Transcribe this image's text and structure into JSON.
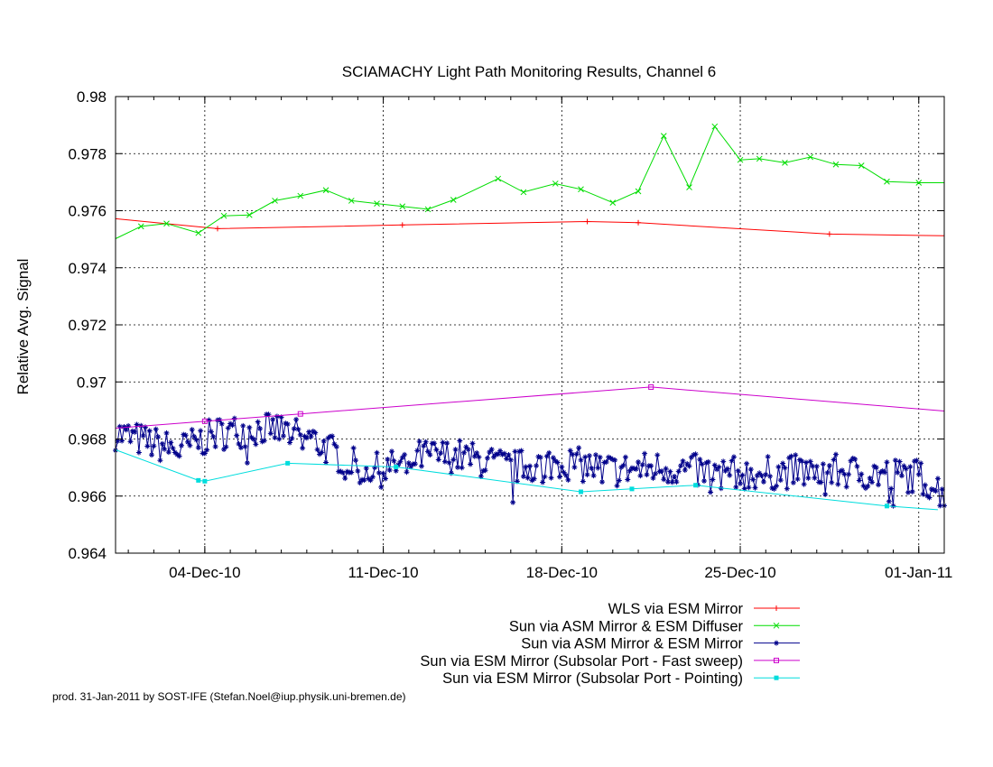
{
  "chart_data": {
    "type": "line",
    "title": "SCIAMACHY Light Path Monitoring Results, Channel 6",
    "xlabel": "",
    "ylabel": "Relative Avg. Signal",
    "x_is_date": true,
    "xlim": [
      "2010-11-30T12:00",
      "2011-01-02T00:00"
    ],
    "ylim": [
      0.964,
      0.98
    ],
    "grid": true,
    "legend_position": "bottom-right",
    "x_ticks": [
      {
        "x": "2010-12-04",
        "label": "04-Dec-10"
      },
      {
        "x": "2010-12-11",
        "label": "11-Dec-10"
      },
      {
        "x": "2010-12-18",
        "label": "18-Dec-10"
      },
      {
        "x": "2010-12-25",
        "label": "25-Dec-10"
      },
      {
        "x": "2011-01-01",
        "label": "01-Jan-11"
      }
    ],
    "y_ticks": [
      {
        "y": 0.964,
        "label": "0.964"
      },
      {
        "y": 0.966,
        "label": "0.966"
      },
      {
        "y": 0.968,
        "label": "0.968"
      },
      {
        "y": 0.97,
        "label": "0.97"
      },
      {
        "y": 0.972,
        "label": "0.972"
      },
      {
        "y": 0.974,
        "label": "0.974"
      },
      {
        "y": 0.976,
        "label": "0.976"
      },
      {
        "y": 0.978,
        "label": "0.978"
      },
      {
        "y": 0.98,
        "label": "0.98"
      }
    ],
    "series": [
      {
        "name": "WLS via ESM Mirror",
        "color": "#ff0000",
        "marker": "plus",
        "points": [
          [
            "2010-11-30T12:00",
            0.97572
          ],
          [
            "2010-12-04T12:00",
            0.97537
          ],
          [
            "2010-12-11T18:00",
            0.9755
          ],
          [
            "2010-12-19T00:00",
            0.97562
          ],
          [
            "2010-12-21T00:00",
            0.97558
          ],
          [
            "2010-12-28T12:00",
            0.97518
          ],
          [
            "2011-01-02T00:00",
            0.97512
          ]
        ]
      },
      {
        "name": "Sun via ASM Mirror & ESM Diffuser",
        "color": "#00dd00",
        "marker": "x",
        "points": [
          [
            "2010-11-30T12:00",
            0.97502
          ],
          [
            "2010-12-01T12:00",
            0.97545
          ],
          [
            "2010-12-02T12:00",
            0.97555
          ],
          [
            "2010-12-03T18:00",
            0.97522
          ],
          [
            "2010-12-04T18:00",
            0.97582
          ],
          [
            "2010-12-05T18:00",
            0.97585
          ],
          [
            "2010-12-06T18:00",
            0.97635
          ],
          [
            "2010-12-07T18:00",
            0.97652
          ],
          [
            "2010-12-08T18:00",
            0.97672
          ],
          [
            "2010-12-09T18:00",
            0.97635
          ],
          [
            "2010-12-10T18:00",
            0.97625
          ],
          [
            "2010-12-11T18:00",
            0.97615
          ],
          [
            "2010-12-12T18:00",
            0.97605
          ],
          [
            "2010-12-13T18:00",
            0.97638
          ],
          [
            "2010-12-15T12:00",
            0.97712
          ],
          [
            "2010-12-16T12:00",
            0.97665
          ],
          [
            "2010-12-17T18:00",
            0.97695
          ],
          [
            "2010-12-18T18:00",
            0.97675
          ],
          [
            "2010-12-20T00:00",
            0.97628
          ],
          [
            "2010-12-21T00:00",
            0.97668
          ],
          [
            "2010-12-22T00:00",
            0.97862
          ],
          [
            "2010-12-23T00:00",
            0.97682
          ],
          [
            "2010-12-24T00:00",
            0.97895
          ],
          [
            "2010-12-25T00:00",
            0.97778
          ],
          [
            "2010-12-25T18:00",
            0.97782
          ],
          [
            "2010-12-26T18:00",
            0.97768
          ],
          [
            "2010-12-27T18:00",
            0.97788
          ],
          [
            "2010-12-28T18:00",
            0.97762
          ],
          [
            "2010-12-29T18:00",
            0.97758
          ],
          [
            "2010-12-30T18:00",
            0.97702
          ],
          [
            "2011-01-01T00:00",
            0.97698
          ],
          [
            "2011-01-02T00:00",
            0.97698
          ]
        ]
      },
      {
        "name": "Sun via ASM Mirror & ESM Mirror",
        "color": "#00008b",
        "marker": "star",
        "smooth_noise": true,
        "trend_points": [
          [
            "2010-11-30T12:00",
            0.9682
          ],
          [
            "2010-12-03T00:00",
            0.9676
          ],
          [
            "2010-12-04T12:00",
            0.9682
          ],
          [
            "2010-12-06T12:00",
            0.9684
          ],
          [
            "2010-12-08T00:00",
            0.9681
          ],
          [
            "2010-12-10T00:00",
            0.967
          ],
          [
            "2010-12-11T00:00",
            0.9669
          ],
          [
            "2010-12-12T12:00",
            0.9674
          ],
          [
            "2010-12-14T00:00",
            0.9674
          ],
          [
            "2010-12-16T00:00",
            0.967
          ],
          [
            "2010-12-18T00:00",
            0.9672
          ],
          [
            "2010-12-20T00:00",
            0.9669
          ],
          [
            "2010-12-22T00:00",
            0.967
          ],
          [
            "2010-12-24T00:00",
            0.9668
          ],
          [
            "2010-12-26T00:00",
            0.9668
          ],
          [
            "2010-12-28T00:00",
            0.9669
          ],
          [
            "2010-12-30T00:00",
            0.9668
          ],
          [
            "2011-01-01T00:00",
            0.9667
          ],
          [
            "2011-01-02T00:00",
            0.9661
          ]
        ],
        "noise_amplitude": 0.0006,
        "sample_hours": 2
      },
      {
        "name": "Sun via ESM Mirror (Subsolar Port - Fast sweep)",
        "color": "#cc00cc",
        "marker": "square-open",
        "points": [
          [
            "2010-11-30T12:00",
            0.96838
          ],
          [
            "2010-12-04T00:00",
            0.96862
          ],
          [
            "2010-12-07T18:00",
            0.96888
          ],
          [
            "2010-12-21T12:00",
            0.96982
          ],
          [
            "2011-01-02T00:00",
            0.96898
          ]
        ]
      },
      {
        "name": "Sun via ESM Mirror (Subsolar Port - Pointing)",
        "color": "#00dddd",
        "marker": "square-filled",
        "points": [
          [
            "2010-11-30T12:00",
            0.96762
          ],
          [
            "2010-12-03T18:00",
            0.96655
          ],
          [
            "2010-12-04T00:00",
            0.96652
          ],
          [
            "2010-12-07T06:00",
            0.96715
          ],
          [
            "2010-12-11T12:00",
            0.96702
          ],
          [
            "2010-12-18T18:00",
            0.96615
          ],
          [
            "2010-12-20T18:00",
            0.96625
          ],
          [
            "2010-12-23T06:00",
            0.96638
          ],
          [
            "2010-12-30T18:00",
            0.96565
          ],
          [
            "2011-01-01T18:00",
            0.96552
          ]
        ]
      }
    ],
    "footer": "prod. 31-Jan-2011 by SOST-IFE (Stefan.Noel@iup.physik.uni-bremen.de)"
  }
}
